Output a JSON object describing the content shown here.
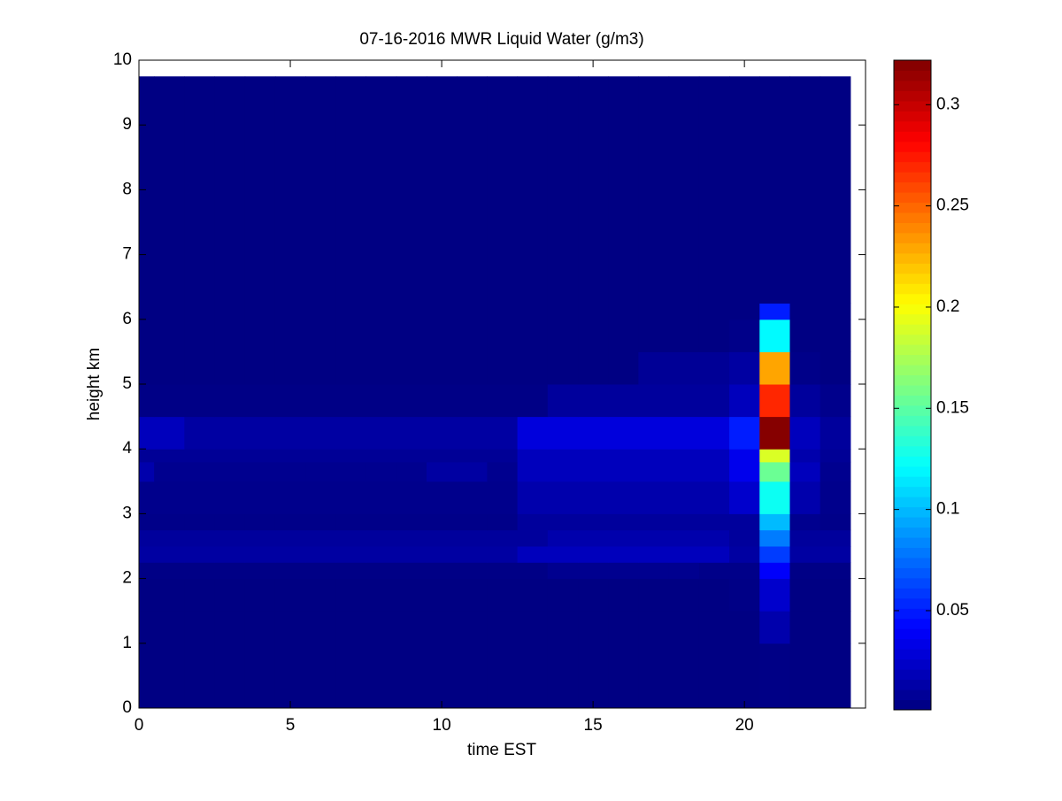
{
  "chart_data": {
    "type": "heatmap",
    "title": "07-16-2016 MWR Liquid Water (g/m3)",
    "x_label": "time EST",
    "y_label": "height km",
    "colormap": "jet",
    "xlim": [
      0,
      24
    ],
    "ylim": [
      0,
      10
    ],
    "xticks": [
      0,
      5,
      10,
      15,
      20
    ],
    "yticks": [
      0,
      1,
      2,
      3,
      4,
      5,
      6,
      7,
      8,
      9,
      10
    ],
    "clim": [
      0.001,
      0.322
    ],
    "cticks": [
      0.05,
      0.1,
      0.15,
      0.2,
      0.25,
      0.3
    ],
    "x_edges": [
      0,
      0.5,
      1.5,
      2.5,
      3.5,
      4.5,
      5.5,
      6.5,
      7.5,
      8.5,
      9.5,
      10.5,
      11.5,
      12.5,
      13.5,
      14.5,
      15.5,
      16.5,
      17.5,
      18.5,
      19.5,
      20.5,
      21.5,
      22.5,
      23.5
    ],
    "y_edges": [
      0,
      1,
      1.5,
      2,
      2.25,
      2.5,
      2.75,
      3,
      3.5,
      3.8,
      4,
      4.5,
      5,
      5.5,
      6,
      6.25,
      9.75
    ],
    "z": [
      [
        0.002,
        0.002,
        0.002,
        0.002,
        0.002,
        0.002,
        0.002,
        0.002,
        0.002,
        0.002,
        0.002,
        0.002,
        0.002,
        0.002,
        0.002,
        0.002,
        0.002,
        0.002,
        0.002,
        0.002,
        0.002,
        0.003,
        0.002,
        0.002
      ],
      [
        0.002,
        0.002,
        0.002,
        0.002,
        0.002,
        0.002,
        0.002,
        0.002,
        0.002,
        0.002,
        0.002,
        0.002,
        0.002,
        0.002,
        0.002,
        0.002,
        0.002,
        0.002,
        0.002,
        0.002,
        0.002,
        0.015,
        0.002,
        0.002
      ],
      [
        0.002,
        0.002,
        0.002,
        0.002,
        0.002,
        0.002,
        0.002,
        0.002,
        0.002,
        0.002,
        0.002,
        0.002,
        0.002,
        0.002,
        0.002,
        0.002,
        0.002,
        0.002,
        0.002,
        0.002,
        0.003,
        0.025,
        0.002,
        0.002
      ],
      [
        0.003,
        0.003,
        0.003,
        0.003,
        0.003,
        0.003,
        0.003,
        0.003,
        0.003,
        0.003,
        0.003,
        0.003,
        0.003,
        0.003,
        0.006,
        0.006,
        0.006,
        0.006,
        0.006,
        0.004,
        0.004,
        0.04,
        0.003,
        0.003
      ],
      [
        0.012,
        0.012,
        0.012,
        0.012,
        0.012,
        0.012,
        0.012,
        0.012,
        0.012,
        0.012,
        0.012,
        0.012,
        0.012,
        0.02,
        0.02,
        0.02,
        0.02,
        0.02,
        0.02,
        0.02,
        0.012,
        0.06,
        0.012,
        0.012
      ],
      [
        0.01,
        0.01,
        0.01,
        0.01,
        0.01,
        0.01,
        0.01,
        0.01,
        0.01,
        0.01,
        0.01,
        0.01,
        0.01,
        0.01,
        0.015,
        0.015,
        0.015,
        0.015,
        0.015,
        0.015,
        0.01,
        0.08,
        0.01,
        0.01
      ],
      [
        0.004,
        0.004,
        0.004,
        0.004,
        0.004,
        0.004,
        0.004,
        0.004,
        0.004,
        0.004,
        0.004,
        0.004,
        0.004,
        0.01,
        0.01,
        0.01,
        0.01,
        0.01,
        0.01,
        0.01,
        0.01,
        0.1,
        0.006,
        0.004
      ],
      [
        0.005,
        0.005,
        0.005,
        0.005,
        0.005,
        0.005,
        0.005,
        0.005,
        0.005,
        0.005,
        0.005,
        0.005,
        0.005,
        0.015,
        0.015,
        0.015,
        0.015,
        0.015,
        0.015,
        0.015,
        0.025,
        0.125,
        0.015,
        0.005
      ],
      [
        0.015,
        0.006,
        0.006,
        0.006,
        0.006,
        0.006,
        0.006,
        0.006,
        0.006,
        0.006,
        0.012,
        0.012,
        0.006,
        0.02,
        0.02,
        0.02,
        0.02,
        0.02,
        0.02,
        0.02,
        0.035,
        0.155,
        0.02,
        0.006
      ],
      [
        0.008,
        0.008,
        0.008,
        0.008,
        0.008,
        0.008,
        0.008,
        0.008,
        0.008,
        0.008,
        0.008,
        0.008,
        0.008,
        0.02,
        0.02,
        0.02,
        0.02,
        0.02,
        0.02,
        0.02,
        0.035,
        0.19,
        0.015,
        0.008
      ],
      [
        0.02,
        0.02,
        0.012,
        0.012,
        0.012,
        0.012,
        0.012,
        0.012,
        0.012,
        0.012,
        0.012,
        0.012,
        0.012,
        0.03,
        0.03,
        0.03,
        0.03,
        0.03,
        0.03,
        0.03,
        0.05,
        0.32,
        0.02,
        0.01
      ],
      [
        0.003,
        0.003,
        0.003,
        0.003,
        0.003,
        0.003,
        0.003,
        0.003,
        0.003,
        0.003,
        0.003,
        0.003,
        0.003,
        0.003,
        0.01,
        0.01,
        0.01,
        0.01,
        0.01,
        0.01,
        0.02,
        0.27,
        0.01,
        0.005
      ],
      [
        0.002,
        0.002,
        0.002,
        0.002,
        0.002,
        0.002,
        0.002,
        0.002,
        0.002,
        0.002,
        0.002,
        0.002,
        0.002,
        0.002,
        0.002,
        0.002,
        0.002,
        0.008,
        0.008,
        0.008,
        0.012,
        0.23,
        0.004,
        0.002
      ],
      [
        0.002,
        0.002,
        0.002,
        0.002,
        0.002,
        0.002,
        0.002,
        0.002,
        0.002,
        0.002,
        0.002,
        0.002,
        0.002,
        0.002,
        0.002,
        0.002,
        0.002,
        0.002,
        0.002,
        0.002,
        0.004,
        0.12,
        0.002,
        0.002
      ],
      [
        0.002,
        0.002,
        0.002,
        0.002,
        0.002,
        0.002,
        0.002,
        0.002,
        0.002,
        0.002,
        0.002,
        0.002,
        0.002,
        0.002,
        0.002,
        0.002,
        0.002,
        0.002,
        0.002,
        0.002,
        0.002,
        0.05,
        0.002,
        0.002
      ],
      [
        0.002,
        0.002,
        0.002,
        0.002,
        0.002,
        0.002,
        0.002,
        0.002,
        0.002,
        0.002,
        0.002,
        0.002,
        0.002,
        0.002,
        0.002,
        0.002,
        0.002,
        0.002,
        0.002,
        0.002,
        0.002,
        0.002,
        0.002,
        0.002
      ]
    ]
  }
}
